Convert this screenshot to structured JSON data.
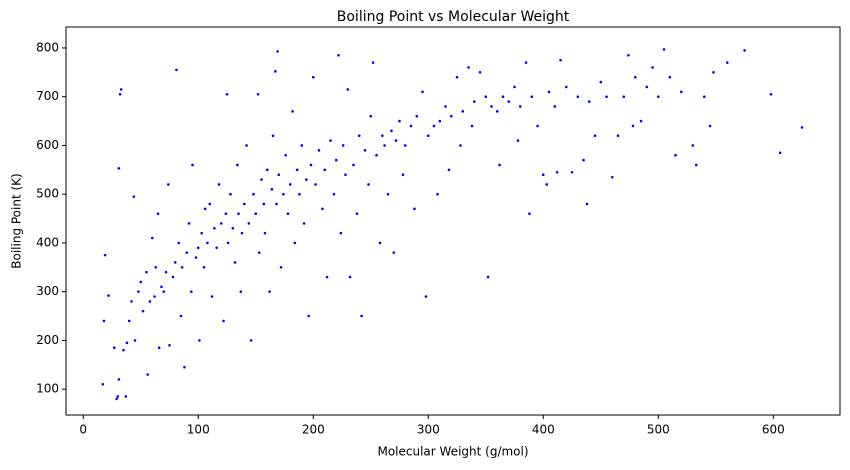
{
  "chart_data": {
    "type": "scatter",
    "title": "Boiling Point vs Molecular Weight",
    "xlabel": "Molecular Weight (g/mol)",
    "ylabel": "Boiling Point (K)",
    "color": "#0000ff",
    "xlim": [
      -15,
      658
    ],
    "ylim": [
      47,
      843
    ],
    "xticks": [
      0,
      100,
      200,
      300,
      400,
      500,
      600
    ],
    "yticks": [
      100,
      200,
      300,
      400,
      500,
      600,
      700,
      800
    ],
    "x": [
      17,
      18,
      19,
      22,
      27,
      29,
      30,
      31,
      32,
      33,
      31,
      35,
      37,
      38,
      40,
      42,
      44,
      45,
      48,
      50,
      52,
      55,
      56,
      58,
      60,
      62,
      63,
      65,
      66,
      68,
      70,
      72,
      74,
      75,
      78,
      80,
      81,
      83,
      85,
      86,
      88,
      90,
      92,
      94,
      95,
      98,
      100,
      101,
      103,
      105,
      106,
      108,
      110,
      112,
      114,
      116,
      118,
      120,
      122,
      124,
      125,
      126,
      128,
      130,
      132,
      134,
      135,
      137,
      138,
      140,
      142,
      144,
      146,
      148,
      150,
      152,
      153,
      155,
      157,
      158,
      160,
      162,
      164,
      165,
      167,
      168,
      169,
      170,
      172,
      174,
      176,
      178,
      180,
      182,
      184,
      186,
      188,
      190,
      192,
      194,
      196,
      198,
      200,
      202,
      205,
      208,
      210,
      212,
      215,
      218,
      220,
      222,
      224,
      226,
      228,
      230,
      232,
      235,
      238,
      240,
      242,
      245,
      248,
      250,
      252,
      255,
      258,
      260,
      262,
      265,
      268,
      270,
      272,
      275,
      278,
      280,
      285,
      288,
      290,
      295,
      298,
      300,
      305,
      308,
      310,
      315,
      318,
      320,
      325,
      328,
      330,
      335,
      338,
      340,
      345,
      350,
      352,
      355,
      360,
      362,
      365,
      370,
      375,
      378,
      380,
      385,
      388,
      390,
      395,
      400,
      403,
      405,
      410,
      412,
      415,
      420,
      425,
      430,
      435,
      438,
      440,
      445,
      450,
      455,
      460,
      465,
      470,
      474,
      478,
      480,
      485,
      490,
      495,
      500,
      505,
      510,
      515,
      520,
      530,
      533,
      540,
      545,
      548,
      560,
      575,
      598,
      606,
      625
    ],
    "values": [
      110,
      240,
      375,
      292,
      185,
      80,
      85,
      120,
      705,
      715,
      553,
      180,
      85,
      195,
      240,
      280,
      495,
      200,
      300,
      320,
      260,
      340,
      130,
      280,
      410,
      290,
      350,
      460,
      185,
      310,
      300,
      340,
      520,
      190,
      330,
      360,
      755,
      400,
      250,
      350,
      145,
      380,
      440,
      300,
      560,
      370,
      390,
      200,
      420,
      350,
      470,
      400,
      480,
      290,
      430,
      390,
      520,
      440,
      240,
      460,
      705,
      400,
      500,
      430,
      360,
      560,
      460,
      300,
      420,
      480,
      600,
      440,
      200,
      500,
      460,
      705,
      380,
      530,
      480,
      420,
      550,
      300,
      510,
      620,
      752,
      480,
      793,
      540,
      350,
      500,
      580,
      460,
      520,
      670,
      400,
      550,
      500,
      600,
      440,
      530,
      250,
      560,
      740,
      520,
      590,
      470,
      550,
      330,
      610,
      500,
      570,
      785,
      420,
      600,
      540,
      715,
      330,
      560,
      460,
      620,
      250,
      590,
      520,
      660,
      770,
      580,
      400,
      620,
      600,
      500,
      630,
      380,
      610,
      650,
      540,
      600,
      640,
      470,
      660,
      710,
      290,
      620,
      640,
      500,
      650,
      680,
      550,
      660,
      740,
      600,
      670,
      760,
      640,
      690,
      750,
      700,
      330,
      680,
      670,
      560,
      700,
      690,
      720,
      610,
      680,
      770,
      460,
      700,
      640,
      540,
      520,
      710,
      680,
      545,
      775,
      720,
      545,
      700,
      570,
      480,
      690,
      620,
      730,
      700,
      535,
      620,
      700,
      785,
      640,
      740,
      650,
      720,
      760,
      700,
      797,
      740,
      580,
      710,
      600,
      560,
      700,
      640,
      750,
      770,
      795,
      705,
      585,
      637
    ]
  }
}
